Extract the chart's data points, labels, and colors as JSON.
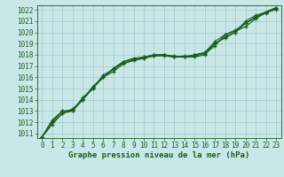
{
  "title": "Graphe pression niveau de la mer (hPa)",
  "background_color": "#c8e8e8",
  "plot_bg_color": "#c8e8e8",
  "grid_color": "#a0c8c8",
  "line_color": "#1a5c1a",
  "x_ticks": [
    0,
    1,
    2,
    3,
    4,
    5,
    6,
    7,
    8,
    9,
    10,
    11,
    12,
    13,
    14,
    15,
    16,
    17,
    18,
    19,
    20,
    21,
    22,
    23
  ],
  "y_ticks": [
    1011,
    1012,
    1013,
    1014,
    1015,
    1016,
    1017,
    1018,
    1019,
    1020,
    1021,
    1022
  ],
  "ylim": [
    1010.6,
    1022.4
  ],
  "xlim": [
    -0.5,
    23.5
  ],
  "lines": [
    [
      1010.7,
      1012.2,
      1013.0,
      1013.0,
      1014.2,
      1015.0,
      1016.2,
      1016.7,
      1017.4,
      1017.7,
      1017.8,
      1018.0,
      1018.0,
      1017.8,
      1017.8,
      1017.8,
      1018.0,
      1019.0,
      1019.5,
      1020.0,
      1021.0,
      1021.5,
      1021.8,
      1022.0
    ],
    [
      1010.7,
      1012.0,
      1012.8,
      1013.0,
      1014.0,
      1015.2,
      1016.0,
      1016.5,
      1017.2,
      1017.5,
      1017.7,
      1017.9,
      1018.0,
      1017.8,
      1017.9,
      1017.9,
      1018.1,
      1018.8,
      1019.8,
      1020.2,
      1020.8,
      1021.3,
      1021.7,
      1022.1
    ],
    [
      1010.7,
      1011.8,
      1012.8,
      1013.2,
      1014.0,
      1015.0,
      1016.0,
      1016.8,
      1017.4,
      1017.6,
      1017.8,
      1018.0,
      1018.0,
      1017.9,
      1017.8,
      1018.0,
      1018.2,
      1019.2,
      1019.8,
      1020.1,
      1020.5,
      1021.2,
      1021.8,
      1022.2
    ],
    [
      1010.7,
      1012.1,
      1013.0,
      1013.1,
      1014.1,
      1015.1,
      1016.0,
      1016.7,
      1017.3,
      1017.5,
      1017.7,
      1017.9,
      1017.9,
      1017.8,
      1017.8,
      1018.0,
      1018.2,
      1019.0,
      1019.6,
      1020.0,
      1020.8,
      1021.4,
      1021.8,
      1022.2
    ]
  ],
  "marker": "+",
  "markersize": 3.5,
  "linewidth": 0.8,
  "tick_fontsize": 5.5,
  "xlabel_fontsize": 6.5,
  "figsize": [
    3.2,
    2.0
  ],
  "dpi": 100
}
